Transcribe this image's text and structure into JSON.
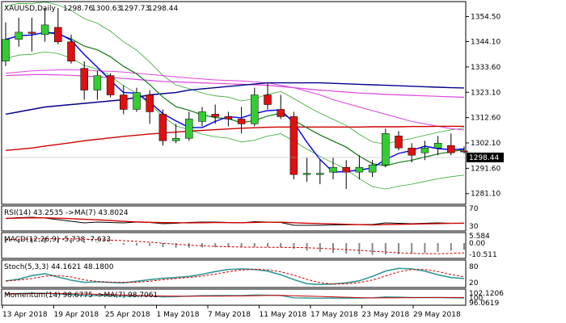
{
  "header": {
    "symbol": "XAUUSD,Daily",
    "open": "1298.76",
    "high": "1300.63",
    "low": "1297.73",
    "close": "1298.44"
  },
  "current_price": "1298.44",
  "colors": {
    "bull": "#33cc33",
    "bear": "#dd1111",
    "ma_fast": "#0000ee",
    "ma_green": "#117711",
    "ma_red": "#cc0000",
    "ma_magenta": "#dd44dd",
    "ma_navy": "#000088",
    "envelope": "#33aa33",
    "rsi": "#000000",
    "rsi_ma": "#cc0000",
    "macd_signal": "#cc0000",
    "stoch_main": "#339999",
    "stoch_signal": "#cc0000",
    "momentum": "#339999",
    "momentum_ma": "#cc0000"
  },
  "indicators": {
    "rsi": {
      "label": "RSI(14) 43.2535  ->MA(7) 43.8024",
      "ticks": [
        "70",
        "30"
      ]
    },
    "macd": {
      "label": "MACD(12,26,9) -5.738 -7.633",
      "ticks": [
        "5.584",
        "0.00",
        "-10.511"
      ]
    },
    "stoch": {
      "label": "Stoch(5,3,3) 44.1621 48.1800",
      "ticks": [
        "80",
        "20"
      ]
    },
    "momentum": {
      "label": "Momentum(14) 98.6775 ->MA(7) 98.7061",
      "ticks": [
        "102.1206",
        "100",
        "96.0619"
      ]
    }
  },
  "chart_data": {
    "type": "candlestick",
    "title": "XAUUSD,Daily",
    "y_ticks": [
      "1354.50",
      "1344.10",
      "1333.60",
      "1323.10",
      "1312.60",
      "1302.10",
      "1291.60",
      "1281.10"
    ],
    "ylim": [
      1277.0,
      1360.0
    ],
    "x_labels": [
      "13 Apr 2018",
      "19 Apr 2018",
      "25 Apr 2018",
      "1 May 2018",
      "7 May 2018",
      "11 May 2018",
      "17 May 2018",
      "23 May 2018",
      "29 May 2018"
    ],
    "candles": [
      {
        "o": 1336.0,
        "h": 1352.0,
        "l": 1334.0,
        "c": 1345.0
      },
      {
        "o": 1345.0,
        "h": 1354.0,
        "l": 1342.0,
        "c": 1348.0
      },
      {
        "o": 1348.0,
        "h": 1354.0,
        "l": 1340.0,
        "c": 1347.5
      },
      {
        "o": 1347.0,
        "h": 1358.0,
        "l": 1344.0,
        "c": 1351.0
      },
      {
        "o": 1350.0,
        "h": 1358.0,
        "l": 1343.0,
        "c": 1344.0
      },
      {
        "o": 1344.0,
        "h": 1347.0,
        "l": 1335.0,
        "c": 1336.0
      },
      {
        "o": 1333.0,
        "h": 1336.0,
        "l": 1320.0,
        "c": 1324.0
      },
      {
        "o": 1324.0,
        "h": 1332.0,
        "l": 1320.0,
        "c": 1330.0
      },
      {
        "o": 1330.0,
        "h": 1331.0,
        "l": 1321.0,
        "c": 1322.0
      },
      {
        "o": 1322.0,
        "h": 1326.0,
        "l": 1314.0,
        "c": 1316.0
      },
      {
        "o": 1316.0,
        "h": 1325.0,
        "l": 1315.0,
        "c": 1323.0
      },
      {
        "o": 1322.0,
        "h": 1324.0,
        "l": 1310.0,
        "c": 1315.0
      },
      {
        "o": 1314.0,
        "h": 1316.0,
        "l": 1301.0,
        "c": 1303.0
      },
      {
        "o": 1303.0,
        "h": 1310.0,
        "l": 1302.0,
        "c": 1304.0
      },
      {
        "o": 1304.0,
        "h": 1315.0,
        "l": 1303.0,
        "c": 1312.0
      },
      {
        "o": 1311.0,
        "h": 1317.0,
        "l": 1309.0,
        "c": 1315.0
      },
      {
        "o": 1314.0,
        "h": 1318.0,
        "l": 1310.0,
        "c": 1313.0
      },
      {
        "o": 1313.0,
        "h": 1315.0,
        "l": 1309.0,
        "c": 1312.0
      },
      {
        "o": 1312.0,
        "h": 1317.0,
        "l": 1306.0,
        "c": 1310.0
      },
      {
        "o": 1310.0,
        "h": 1325.0,
        "l": 1309.0,
        "c": 1322.0
      },
      {
        "o": 1322.0,
        "h": 1327.0,
        "l": 1316.0,
        "c": 1318.0
      },
      {
        "o": 1316.0,
        "h": 1322.0,
        "l": 1312.0,
        "c": 1313.0
      },
      {
        "o": 1313.0,
        "h": 1315.0,
        "l": 1287.0,
        "c": 1289.0
      },
      {
        "o": 1289.0,
        "h": 1296.0,
        "l": 1286.0,
        "c": 1289.5
      },
      {
        "o": 1289.0,
        "h": 1295.0,
        "l": 1285.0,
        "c": 1289.5
      },
      {
        "o": 1290.0,
        "h": 1296.0,
        "l": 1287.0,
        "c": 1292.0
      },
      {
        "o": 1292.0,
        "h": 1295.0,
        "l": 1283.0,
        "c": 1290.0
      },
      {
        "o": 1290.0,
        "h": 1297.0,
        "l": 1287.0,
        "c": 1292.0
      },
      {
        "o": 1290.0,
        "h": 1295.0,
        "l": 1288.0,
        "c": 1293.0
      },
      {
        "o": 1293.0,
        "h": 1308.0,
        "l": 1292.0,
        "c": 1306.0
      },
      {
        "o": 1305.0,
        "h": 1307.0,
        "l": 1299.0,
        "c": 1300.0
      },
      {
        "o": 1300.0,
        "h": 1302.0,
        "l": 1294.0,
        "c": 1297.0
      },
      {
        "o": 1298.0,
        "h": 1303.0,
        "l": 1295.0,
        "c": 1300.0
      },
      {
        "o": 1300.0,
        "h": 1305.0,
        "l": 1297.0,
        "c": 1302.0
      },
      {
        "o": 1301.0,
        "h": 1306.0,
        "l": 1297.0,
        "c": 1298.0
      },
      {
        "o": 1298.76,
        "h": 1300.63,
        "l": 1297.73,
        "c": 1298.44
      }
    ]
  }
}
